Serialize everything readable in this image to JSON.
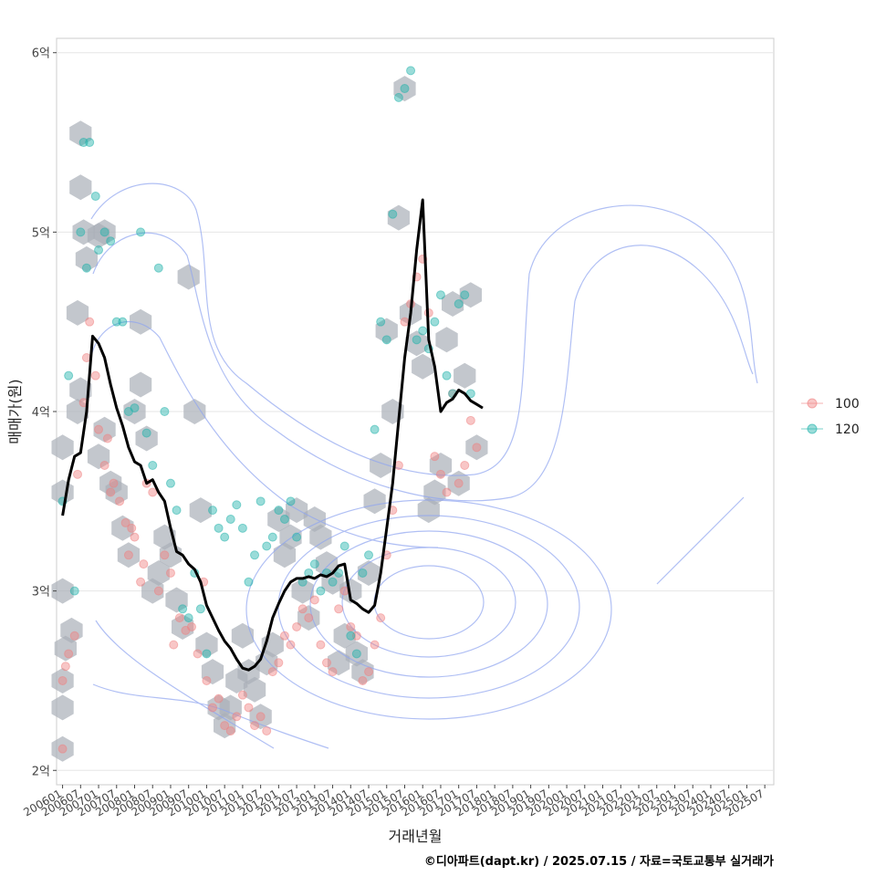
{
  "chart_data": {
    "type": "scatter",
    "xlabel": "거래년월",
    "ylabel": "매매가(원)",
    "caption": "©디아파트(dapt.kr) / 2025.07.15 / 자료=국토교통부 실거래가",
    "y_ticks": [
      {
        "value": 2,
        "label": "2억"
      },
      {
        "value": 3,
        "label": "3억"
      },
      {
        "value": 4,
        "label": "4억"
      },
      {
        "value": 5,
        "label": "5억"
      },
      {
        "value": 6,
        "label": "6억"
      }
    ],
    "ylim": [
      1.92,
      6.08
    ],
    "xlim": [
      "200511",
      "202510"
    ],
    "x_ticks": [
      "200601",
      "200607",
      "200701",
      "200707",
      "200801",
      "200807",
      "200901",
      "200907",
      "201001",
      "201007",
      "201101",
      "201107",
      "201201",
      "201207",
      "201301",
      "201307",
      "201401",
      "201407",
      "201501",
      "201507",
      "201601",
      "201607",
      "201701",
      "201707",
      "201801",
      "201807",
      "201901",
      "201907",
      "202001",
      "202007",
      "202101",
      "202107",
      "202201",
      "202207",
      "202301",
      "202307",
      "202401",
      "202407",
      "202501",
      "202507"
    ],
    "grid": true,
    "legend": {
      "position": "right",
      "entries": [
        {
          "label": "100",
          "color": "#F08080"
        },
        {
          "label": "120",
          "color": "#20B2AA"
        }
      ]
    },
    "colors": {
      "hexbin": "#A9AFB8",
      "density": "#8FA5F0",
      "trend": "#000000"
    },
    "trend_line": [
      [
        "200601",
        3.42
      ],
      [
        "200603",
        3.62
      ],
      [
        "200605",
        3.75
      ],
      [
        "200607",
        3.77
      ],
      [
        "200609",
        4.0
      ],
      [
        "200611",
        4.42
      ],
      [
        "200701",
        4.38
      ],
      [
        "200703",
        4.3
      ],
      [
        "200705",
        4.15
      ],
      [
        "200707",
        4.02
      ],
      [
        "200709",
        3.92
      ],
      [
        "200711",
        3.8
      ],
      [
        "200801",
        3.72
      ],
      [
        "200803",
        3.7
      ],
      [
        "200805",
        3.6
      ],
      [
        "200807",
        3.62
      ],
      [
        "200809",
        3.55
      ],
      [
        "200811",
        3.5
      ],
      [
        "200901",
        3.35
      ],
      [
        "200903",
        3.22
      ],
      [
        "200905",
        3.2
      ],
      [
        "200907",
        3.15
      ],
      [
        "200909",
        3.12
      ],
      [
        "200911",
        3.05
      ],
      [
        "201001",
        2.92
      ],
      [
        "201003",
        2.85
      ],
      [
        "201005",
        2.78
      ],
      [
        "201007",
        2.72
      ],
      [
        "201009",
        2.68
      ],
      [
        "201011",
        2.62
      ],
      [
        "201101",
        2.57
      ],
      [
        "201103",
        2.56
      ],
      [
        "201105",
        2.58
      ],
      [
        "201107",
        2.62
      ],
      [
        "201109",
        2.72
      ],
      [
        "201111",
        2.85
      ],
      [
        "201201",
        2.93
      ],
      [
        "201203",
        3.0
      ],
      [
        "201205",
        3.05
      ],
      [
        "201207",
        3.07
      ],
      [
        "201209",
        3.07
      ],
      [
        "201211",
        3.08
      ],
      [
        "201301",
        3.07
      ],
      [
        "201303",
        3.09
      ],
      [
        "201305",
        3.08
      ],
      [
        "201307",
        3.1
      ],
      [
        "201309",
        3.14
      ],
      [
        "201311",
        3.15
      ],
      [
        "201401",
        2.95
      ],
      [
        "201403",
        2.93
      ],
      [
        "201405",
        2.9
      ],
      [
        "201407",
        2.88
      ],
      [
        "201409",
        2.92
      ],
      [
        "201411",
        3.1
      ],
      [
        "201501",
        3.35
      ],
      [
        "201503",
        3.6
      ],
      [
        "201505",
        3.95
      ],
      [
        "201507",
        4.3
      ],
      [
        "201509",
        4.55
      ],
      [
        "201511",
        4.9
      ],
      [
        "201601",
        5.18
      ],
      [
        "201603",
        4.4
      ],
      [
        "201605",
        4.25
      ],
      [
        "201607",
        4.0
      ],
      [
        "201609",
        4.05
      ],
      [
        "201611",
        4.07
      ],
      [
        "201701",
        4.12
      ],
      [
        "201703",
        4.1
      ],
      [
        "201705",
        4.06
      ],
      [
        "201707",
        4.04
      ],
      [
        "201709",
        4.02
      ]
    ],
    "series": [
      {
        "name": "100",
        "points": [
          [
            "200601",
            2.12
          ],
          [
            "200601",
            2.5
          ],
          [
            "200602",
            2.58
          ],
          [
            "200603",
            2.65
          ],
          [
            "200605",
            2.75
          ],
          [
            "200606",
            3.65
          ],
          [
            "200608",
            4.05
          ],
          [
            "200609",
            4.3
          ],
          [
            "200610",
            4.5
          ],
          [
            "200612",
            4.2
          ],
          [
            "200701",
            3.9
          ],
          [
            "200703",
            3.7
          ],
          [
            "200704",
            3.85
          ],
          [
            "200705",
            3.55
          ],
          [
            "200706",
            3.6
          ],
          [
            "200708",
            3.5
          ],
          [
            "200710",
            3.38
          ],
          [
            "200711",
            3.2
          ],
          [
            "200712",
            3.35
          ],
          [
            "200801",
            3.3
          ],
          [
            "200803",
            3.05
          ],
          [
            "200804",
            3.15
          ],
          [
            "200805",
            3.6
          ],
          [
            "200807",
            3.55
          ],
          [
            "200809",
            3.0
          ],
          [
            "200811",
            3.2
          ],
          [
            "200901",
            3.1
          ],
          [
            "200902",
            2.7
          ],
          [
            "200904",
            2.85
          ],
          [
            "200906",
            2.78
          ],
          [
            "200908",
            2.8
          ],
          [
            "200910",
            2.65
          ],
          [
            "200912",
            3.05
          ],
          [
            "201001",
            2.5
          ],
          [
            "201003",
            2.35
          ],
          [
            "201005",
            2.4
          ],
          [
            "201007",
            2.25
          ],
          [
            "201009",
            2.22
          ],
          [
            "201011",
            2.3
          ],
          [
            "201101",
            2.42
          ],
          [
            "201103",
            2.35
          ],
          [
            "201105",
            2.25
          ],
          [
            "201107",
            2.3
          ],
          [
            "201109",
            2.22
          ],
          [
            "201111",
            2.55
          ],
          [
            "201201",
            2.6
          ],
          [
            "201203",
            2.75
          ],
          [
            "201205",
            2.7
          ],
          [
            "201207",
            2.8
          ],
          [
            "201209",
            2.9
          ],
          [
            "201211",
            2.85
          ],
          [
            "201301",
            2.95
          ],
          [
            "201303",
            2.7
          ],
          [
            "201305",
            2.6
          ],
          [
            "201307",
            2.55
          ],
          [
            "201309",
            2.9
          ],
          [
            "201311",
            3.0
          ],
          [
            "201401",
            2.8
          ],
          [
            "201403",
            2.75
          ],
          [
            "201405",
            2.5
          ],
          [
            "201407",
            2.55
          ],
          [
            "201409",
            2.7
          ],
          [
            "201411",
            2.85
          ],
          [
            "201501",
            3.2
          ],
          [
            "201503",
            3.45
          ],
          [
            "201505",
            3.7
          ],
          [
            "201507",
            4.5
          ],
          [
            "201509",
            4.6
          ],
          [
            "201511",
            4.75
          ],
          [
            "201601",
            4.85
          ],
          [
            "201603",
            4.55
          ],
          [
            "201605",
            3.75
          ],
          [
            "201607",
            3.65
          ],
          [
            "201609",
            3.55
          ],
          [
            "201611",
            4.1
          ],
          [
            "201701",
            3.6
          ],
          [
            "201703",
            3.7
          ],
          [
            "201705",
            3.95
          ],
          [
            "201707",
            3.8
          ]
        ]
      },
      {
        "name": "120",
        "points": [
          [
            "200601",
            3.5
          ],
          [
            "200603",
            4.2
          ],
          [
            "200605",
            3.0
          ],
          [
            "200607",
            5.0
          ],
          [
            "200608",
            5.5
          ],
          [
            "200609",
            4.8
          ],
          [
            "200610",
            5.5
          ],
          [
            "200612",
            5.2
          ],
          [
            "200701",
            4.9
          ],
          [
            "200703",
            5.0
          ],
          [
            "200705",
            4.95
          ],
          [
            "200707",
            4.5
          ],
          [
            "200709",
            4.5
          ],
          [
            "200711",
            4.0
          ],
          [
            "200801",
            4.02
          ],
          [
            "200803",
            5.0
          ],
          [
            "200805",
            3.88
          ],
          [
            "200807",
            3.7
          ],
          [
            "200809",
            4.8
          ],
          [
            "200811",
            4.0
          ],
          [
            "200901",
            3.6
          ],
          [
            "200903",
            3.45
          ],
          [
            "200905",
            2.9
          ],
          [
            "200907",
            2.85
          ],
          [
            "200909",
            3.1
          ],
          [
            "200911",
            2.9
          ],
          [
            "201001",
            2.65
          ],
          [
            "201003",
            3.45
          ],
          [
            "201005",
            3.35
          ],
          [
            "201007",
            3.3
          ],
          [
            "201009",
            3.4
          ],
          [
            "201011",
            3.48
          ],
          [
            "201101",
            3.35
          ],
          [
            "201103",
            3.05
          ],
          [
            "201105",
            3.2
          ],
          [
            "201107",
            3.5
          ],
          [
            "201109",
            3.25
          ],
          [
            "201111",
            3.3
          ],
          [
            "201201",
            3.45
          ],
          [
            "201203",
            3.4
          ],
          [
            "201205",
            3.5
          ],
          [
            "201207",
            3.3
          ],
          [
            "201209",
            3.05
          ],
          [
            "201211",
            3.1
          ],
          [
            "201301",
            3.15
          ],
          [
            "201303",
            3.0
          ],
          [
            "201305",
            3.1
          ],
          [
            "201307",
            3.05
          ],
          [
            "201309",
            3.1
          ],
          [
            "201311",
            3.25
          ],
          [
            "201401",
            2.75
          ],
          [
            "201403",
            2.65
          ],
          [
            "201405",
            3.1
          ],
          [
            "201407",
            3.2
          ],
          [
            "201409",
            3.9
          ],
          [
            "201411",
            4.5
          ],
          [
            "201501",
            4.4
          ],
          [
            "201503",
            5.1
          ],
          [
            "201505",
            5.75
          ],
          [
            "201507",
            5.8
          ],
          [
            "201509",
            5.9
          ],
          [
            "201511",
            4.4
          ],
          [
            "201601",
            4.45
          ],
          [
            "201603",
            4.35
          ],
          [
            "201605",
            4.5
          ],
          [
            "201607",
            4.65
          ],
          [
            "201609",
            4.2
          ],
          [
            "201611",
            4.1
          ],
          [
            "201701",
            4.6
          ],
          [
            "201703",
            4.65
          ],
          [
            "201705",
            4.1
          ]
        ]
      }
    ],
    "hexbins": [
      [
        "200601",
        2.12
      ],
      [
        "200601",
        2.35
      ],
      [
        "200601",
        2.5
      ],
      [
        "200602",
        2.68
      ],
      [
        "200604",
        2.78
      ],
      [
        "200601",
        3.0
      ],
      [
        "200601",
        3.55
      ],
      [
        "200601",
        3.8
      ],
      [
        "200606",
        4.0
      ],
      [
        "200607",
        4.12
      ],
      [
        "200606",
        4.55
      ],
      [
        "200607",
        5.25
      ],
      [
        "200607",
        5.55
      ],
      [
        "200608",
        5.0
      ],
      [
        "200609",
        4.85
      ],
      [
        "200701",
        4.98
      ],
      [
        "200703",
        5.0
      ],
      [
        "200701",
        3.75
      ],
      [
        "200703",
        3.9
      ],
      [
        "200705",
        3.6
      ],
      [
        "200707",
        3.55
      ],
      [
        "200709",
        3.35
      ],
      [
        "200711",
        3.2
      ],
      [
        "200801",
        4.0
      ],
      [
        "200803",
        4.5
      ],
      [
        "200803",
        4.15
      ],
      [
        "200805",
        3.85
      ],
      [
        "200807",
        3.0
      ],
      [
        "200809",
        3.1
      ],
      [
        "200811",
        3.3
      ],
      [
        "200901",
        3.2
      ],
      [
        "200903",
        2.95
      ],
      [
        "200905",
        2.8
      ],
      [
        "200907",
        4.75
      ],
      [
        "200909",
        4.0
      ],
      [
        "200911",
        3.45
      ],
      [
        "201001",
        2.7
      ],
      [
        "201003",
        2.55
      ],
      [
        "201005",
        2.35
      ],
      [
        "201007",
        2.25
      ],
      [
        "201009",
        2.35
      ],
      [
        "201011",
        2.5
      ],
      [
        "201101",
        2.75
      ],
      [
        "201103",
        2.55
      ],
      [
        "201105",
        2.45
      ],
      [
        "201107",
        2.3
      ],
      [
        "201109",
        2.6
      ],
      [
        "201111",
        2.7
      ],
      [
        "201201",
        3.4
      ],
      [
        "201203",
        3.2
      ],
      [
        "201205",
        3.3
      ],
      [
        "201207",
        3.45
      ],
      [
        "201209",
        3.0
      ],
      [
        "201211",
        2.85
      ],
      [
        "201301",
        3.4
      ],
      [
        "201303",
        3.3
      ],
      [
        "201305",
        3.15
      ],
      [
        "201307",
        3.05
      ],
      [
        "201309",
        2.6
      ],
      [
        "201311",
        2.75
      ],
      [
        "201401",
        3.0
      ],
      [
        "201403",
        2.65
      ],
      [
        "201405",
        2.55
      ],
      [
        "201407",
        3.1
      ],
      [
        "201409",
        3.5
      ],
      [
        "201411",
        3.7
      ],
      [
        "201501",
        4.45
      ],
      [
        "201503",
        4.0
      ],
      [
        "201505",
        5.08
      ],
      [
        "201507",
        5.8
      ],
      [
        "201509",
        4.55
      ],
      [
        "201511",
        4.38
      ],
      [
        "201601",
        4.25
      ],
      [
        "201603",
        3.45
      ],
      [
        "201605",
        3.55
      ],
      [
        "201607",
        3.7
      ],
      [
        "201609",
        4.4
      ],
      [
        "201611",
        4.6
      ],
      [
        "201701",
        3.6
      ],
      [
        "201703",
        4.2
      ],
      [
        "201705",
        4.65
      ],
      [
        "201707",
        3.8
      ]
    ]
  }
}
